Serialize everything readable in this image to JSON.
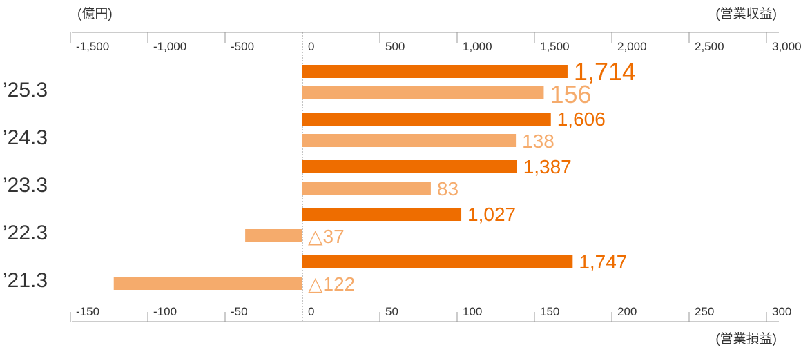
{
  "chart_data": {
    "type": "bar",
    "orientation": "horizontal",
    "unit_label": "(億円)",
    "categories": [
      "’25.3",
      "’24.3",
      "’23.3",
      "’22.3",
      "’21.3"
    ],
    "series": [
      {
        "name": "営業収益",
        "axis": "top",
        "values": [
          1714,
          1606,
          1387,
          1027,
          1747
        ],
        "labels": [
          "1,714",
          "1,606",
          "1,387",
          "1,027",
          "1,747"
        ]
      },
      {
        "name": "営業損益",
        "axis": "bottom",
        "values": [
          156,
          138,
          83,
          -37,
          -122
        ],
        "labels": [
          "156",
          "138",
          "83",
          "△37",
          "△122"
        ]
      }
    ],
    "top_axis": {
      "label": "(営業収益)",
      "range": [
        -1500,
        3000
      ],
      "ticks": [
        -1500,
        -1000,
        -500,
        0,
        500,
        1000,
        1500,
        2000,
        2500,
        3000
      ],
      "tick_labels": [
        "-1,500",
        "-1,000",
        "-500",
        "0",
        "500",
        "1,000",
        "1,500",
        "2,000",
        "2,500",
        "3,000"
      ]
    },
    "bottom_axis": {
      "label": "(営業損益)",
      "range": [
        -150,
        300
      ],
      "ticks": [
        -150,
        -100,
        -50,
        0,
        50,
        100,
        150,
        200,
        250,
        300
      ],
      "tick_labels": [
        "-150",
        "-100",
        "-50",
        "0",
        "50",
        "100",
        "150",
        "200",
        "250",
        "300"
      ]
    },
    "colors": {
      "revenue": "#ee6d00",
      "profit": "#f5ab6c",
      "axis": "#999999",
      "text": "#333333"
    },
    "grid": false,
    "legend": "none"
  }
}
